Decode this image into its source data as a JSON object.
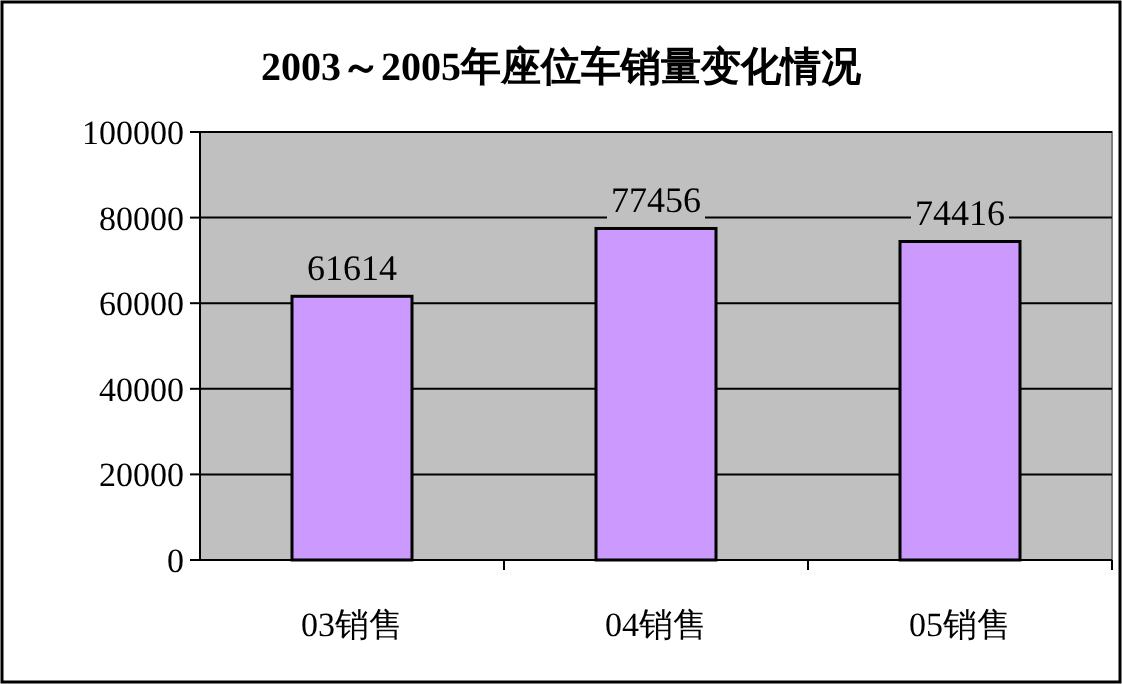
{
  "chart_data": {
    "type": "bar",
    "title": "2003～2005年座位车销量变化情况",
    "categories": [
      "03销售",
      "04销售",
      "05销售"
    ],
    "values": [
      61614,
      77456,
      74416
    ],
    "color": "#cc99ff",
    "ylim": [
      0,
      100000
    ],
    "yticks": [
      0,
      20000,
      40000,
      60000,
      80000,
      100000
    ],
    "grid": "y",
    "data_labels": true
  }
}
